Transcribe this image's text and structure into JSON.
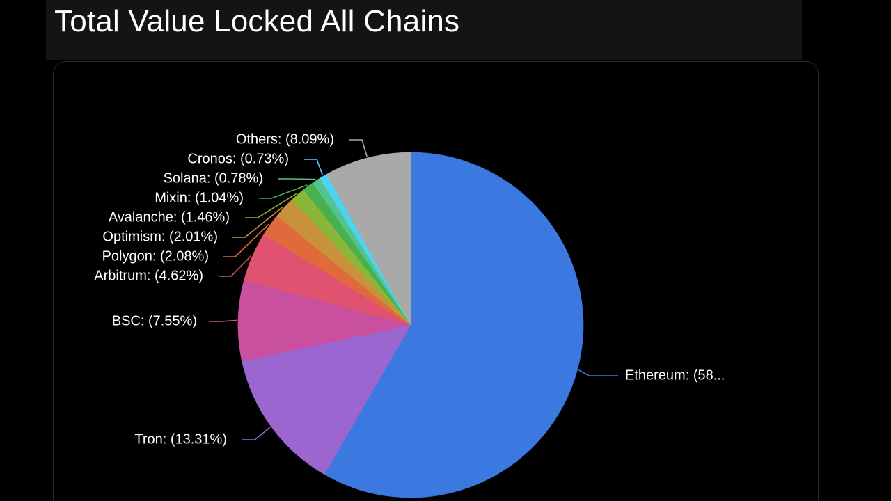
{
  "header": {
    "title": "Total Value Locked All Chains"
  },
  "chart_data": {
    "type": "pie",
    "title": "Total Value Locked All Chains",
    "unit": "%",
    "slices": [
      {
        "name": "Ethereum",
        "value": 58.33,
        "label": "Ethereum: (58...",
        "color": "#3b78e0"
      },
      {
        "name": "Tron",
        "value": 13.31,
        "label": "Tron: (13.31%)",
        "color": "#9b66d0"
      },
      {
        "name": "BSC",
        "value": 7.55,
        "label": "BSC: (7.55%)",
        "color": "#c8509e"
      },
      {
        "name": "Arbitrum",
        "value": 4.62,
        "label": "Arbitrum: (4.62%)",
        "color": "#e05270"
      },
      {
        "name": "Polygon",
        "value": 2.08,
        "label": "Polygon: (2.08%)",
        "color": "#e06a3c"
      },
      {
        "name": "Optimism",
        "value": 2.01,
        "label": "Optimism: (2.01%)",
        "color": "#c9923a"
      },
      {
        "name": "Avalanche",
        "value": 1.46,
        "label": "Avalanche: (1.46%)",
        "color": "#8cb637"
      },
      {
        "name": "Mixin",
        "value": 1.04,
        "label": "Mixin: (1.04%)",
        "color": "#48b04f"
      },
      {
        "name": "Solana",
        "value": 0.78,
        "label": "Solana: (0.78%)",
        "color": "#52c58f"
      },
      {
        "name": "Cronos",
        "value": 0.73,
        "label": "Cronos: (0.73%)",
        "color": "#4fd3f5"
      },
      {
        "name": "Others",
        "value": 8.09,
        "label": "Others: (8.09%)",
        "color": "#a9a9a9"
      }
    ],
    "start_angle": "12 o'clock",
    "direction": "clockwise",
    "labels": "outside with leader lines",
    "legend": "none"
  }
}
